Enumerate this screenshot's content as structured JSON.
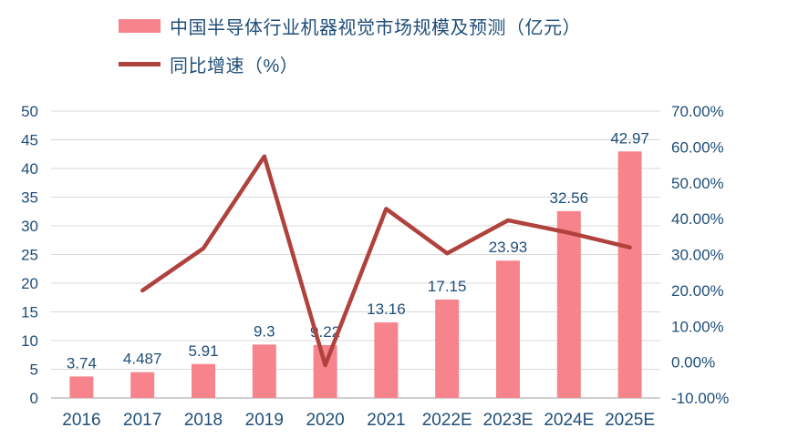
{
  "legend": [
    {
      "label": "中国半导体行业机器视觉市场规模及预测（亿元）",
      "type": "bar"
    },
    {
      "label": "同比增速（%）",
      "type": "line"
    }
  ],
  "colors": {
    "bar": "#F7848C",
    "line": "#B0423E",
    "text": "#1F4E79",
    "grid": "#D9D9D9",
    "axis": "#BFBFBF"
  },
  "chart_data": {
    "type": "bar+line",
    "title": "中国半导体行业机器视觉市场规模及预测（亿元）",
    "categories": [
      "2016",
      "2017",
      "2018",
      "2019",
      "2020",
      "2021",
      "2022E",
      "2023E",
      "2024E",
      "2025E"
    ],
    "series": [
      {
        "name": "中国半导体行业机器视觉市场规模及预测（亿元）",
        "type": "bar",
        "axis": "left",
        "values": [
          3.74,
          4.487,
          5.91,
          9.3,
          9.22,
          13.16,
          17.15,
          23.93,
          32.56,
          42.97
        ],
        "labels": [
          "3.74",
          "4.487",
          "5.91",
          "9.3",
          "9.22",
          "13.16",
          "17.15",
          "23.93",
          "32.56",
          "42.97"
        ],
        "color": "#F7848C"
      },
      {
        "name": "同比增速（%）",
        "type": "line",
        "axis": "right",
        "values": [
          null,
          19.97,
          31.71,
          57.36,
          -0.86,
          42.73,
          30.32,
          39.53,
          36.06,
          31.97
        ],
        "color": "#B0423E"
      }
    ],
    "left_axis": {
      "min": 0,
      "max": 50,
      "step": 5,
      "ticks": [
        "0",
        "5",
        "10",
        "15",
        "20",
        "25",
        "30",
        "35",
        "40",
        "45",
        "50"
      ]
    },
    "right_axis": {
      "min": -10,
      "max": 70,
      "step": 10,
      "ticks": [
        "-10.00%",
        "0.00%",
        "10.00%",
        "20.00%",
        "30.00%",
        "40.00%",
        "50.00%",
        "60.00%",
        "70.00%"
      ]
    },
    "grid": true,
    "legend_position": "top-left"
  }
}
